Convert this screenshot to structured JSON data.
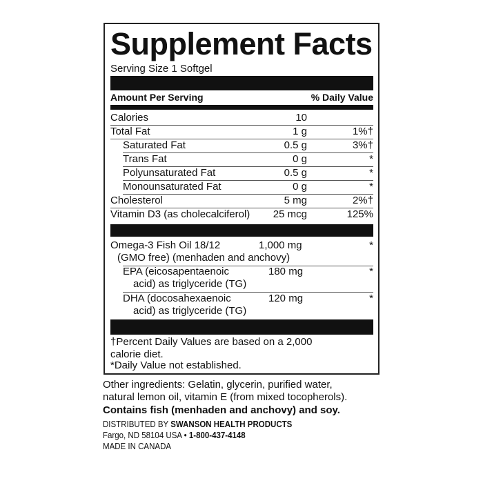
{
  "title": "Supplement Facts",
  "serving_size": "Serving Size 1 Softgel",
  "header": {
    "amount": "Amount Per Serving",
    "dv": "% Daily Value"
  },
  "rows": [
    {
      "name": "Calories",
      "amount": "10",
      "dv": ""
    },
    {
      "name": "Total Fat",
      "amount": "1 g",
      "dv": "1%†"
    },
    {
      "name": "Saturated Fat",
      "amount": "0.5 g",
      "dv": "3%†"
    },
    {
      "name": "Trans Fat",
      "amount": "0 g",
      "dv": "*"
    },
    {
      "name": "Polyunsaturated Fat",
      "amount": "0.5 g",
      "dv": "*"
    },
    {
      "name": "Monounsaturated Fat",
      "amount": "0 g",
      "dv": "*"
    },
    {
      "name": "Cholesterol",
      "amount": "5 mg",
      "dv": "2%†"
    },
    {
      "name": "Vitamin D3 (as cholecalciferol)",
      "amount": "25 mcg",
      "dv": "125%"
    }
  ],
  "omega": [
    {
      "line1": "Omega-3 Fish Oil 18/12",
      "line2": "(GMO free) (menhaden and anchovy)",
      "amount": "1,000 mg",
      "dv": "*"
    },
    {
      "line1": "EPA (eicosapentaenoic",
      "line2": "acid) as triglyceride (TG)",
      "amount": "180 mg",
      "dv": "*"
    },
    {
      "line1": "DHA (docosahexaenoic",
      "line2": "acid) as triglyceride (TG)",
      "amount": "120 mg",
      "dv": "*"
    }
  ],
  "footnotes": [
    "†Percent Daily Values are based on a 2,000",
    "calorie diet.",
    "*Daily Value not established."
  ],
  "other_ingredients": [
    "Other ingredients: Gelatin, glycerin, purified water,",
    "natural lemon oil, vitamin E (from mixed tocopherols)."
  ],
  "allergen": "Contains fish (menhaden and anchovy) and soy.",
  "distributor": {
    "prefix": "DISTRIBUTED BY ",
    "name": "SWANSON HEALTH PRODUCTS",
    "address": "Fargo, ND 58104 USA • ",
    "phone": "1-800-437-4148",
    "origin": "MADE IN CANADA"
  }
}
